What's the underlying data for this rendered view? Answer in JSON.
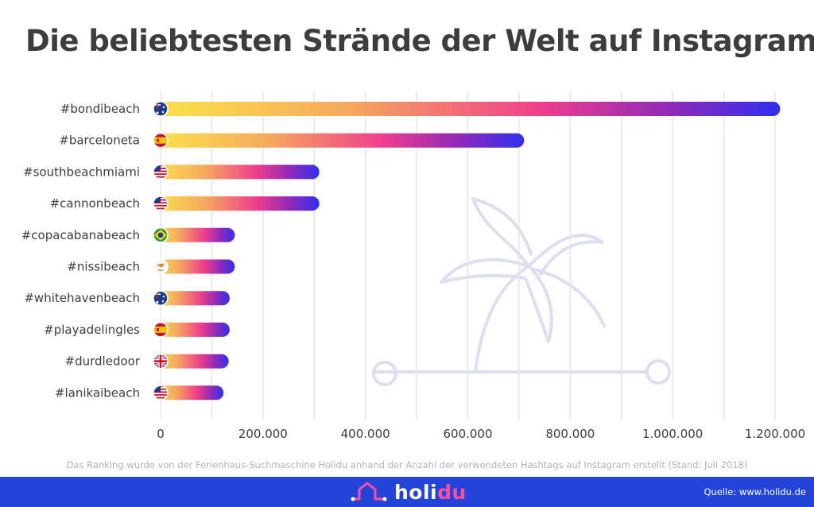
{
  "header": {
    "title": "Die beliebtesten Strände der Welt auf Instagram"
  },
  "chart_data": {
    "type": "bar",
    "orientation": "horizontal",
    "title": "Die beliebtesten Strände der Welt auf Instagram",
    "xlabel": "",
    "ylabel": "",
    "xlim": [
      0,
      1200000
    ],
    "grid": true,
    "x_ticks": [
      0,
      200000,
      400000,
      600000,
      800000,
      1000000,
      1200000
    ],
    "x_tick_labels": [
      "0",
      "200.000",
      "400.000",
      "600.000",
      "800.000",
      "1.000.000",
      "1.200.000"
    ],
    "categories": [
      "#bondibeach",
      "#barceloneta",
      "#southbeachmiami",
      "#cannonbeach",
      "#copacabanabeach",
      "#nissibeach",
      "#whitehavenbeach",
      "#playadelingles",
      "#durdledoor",
      "#lanikaibeach"
    ],
    "flags": [
      "australia",
      "spain",
      "usa",
      "usa",
      "brazil",
      "cyprus",
      "australia",
      "spain",
      "uk",
      "usa"
    ],
    "values": [
      1210000,
      710000,
      310000,
      310000,
      145000,
      145000,
      135000,
      135000,
      133000,
      123000
    ]
  },
  "footnote": "Das Ranking wurde von der Ferienhaus-Suchmaschine Holidu anhand der Anzahl der verwendeten Hashtags auf Instagram erstellt (Stand: Juli 2018)",
  "footer": {
    "brand_main": "holi",
    "brand_accent": "du",
    "source": "Quelle: www.holidu.de"
  },
  "colors": {
    "background": "#ffffff",
    "title": "#3d3d3d",
    "gradient": [
      "#fbe34a",
      "#f6ac5d",
      "#ef3e8c",
      "#9329b8",
      "#2f2ff0"
    ],
    "footer": "#2244d9",
    "grid": "#e5e5ee",
    "watermark": "#dcdff3"
  }
}
